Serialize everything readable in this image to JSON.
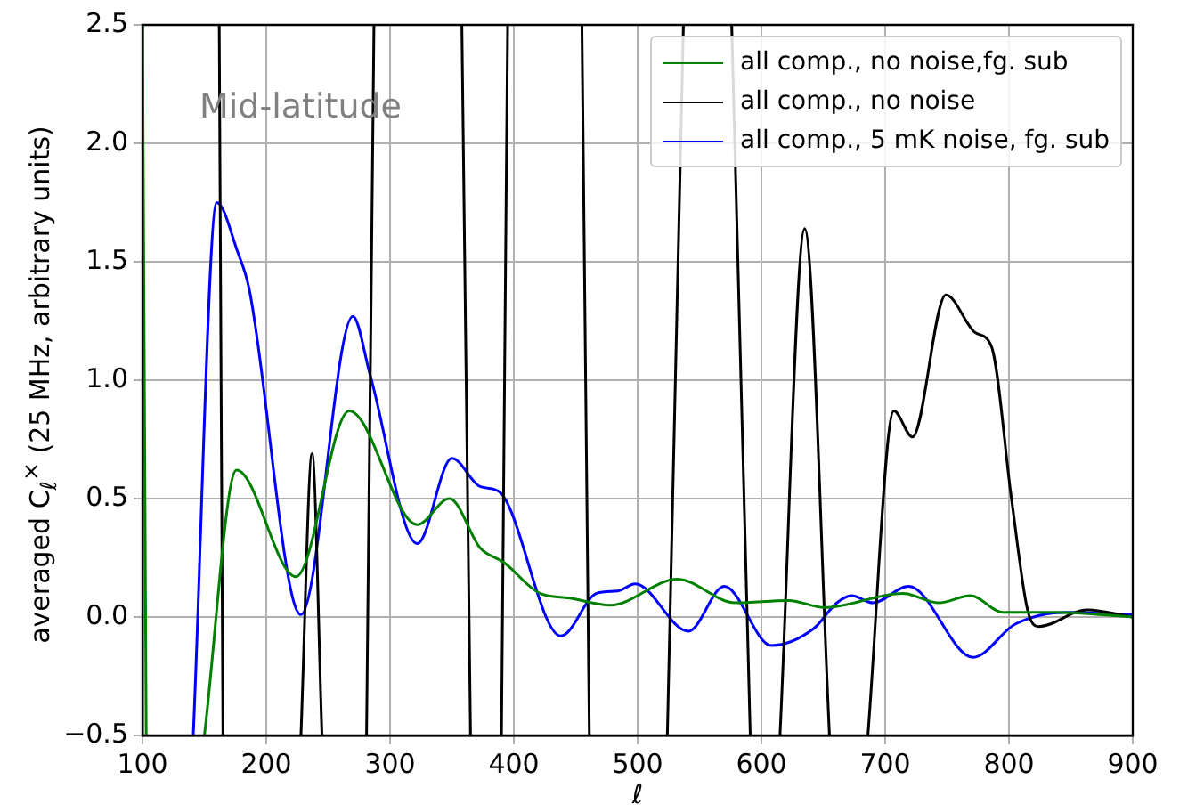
{
  "chart_data": {
    "type": "line",
    "xlabel": "ℓ",
    "ylabel": "averaged C$_{ℓ}$$^{×}$ (25 MHz, arbitrary units)",
    "annotations": [
      "Mid-latitude"
    ],
    "xlim": [
      100,
      900
    ],
    "xticks": [
      100,
      200,
      300,
      400,
      500,
      600,
      700,
      800,
      900
    ],
    "ylim": [
      -0.5,
      2.5
    ],
    "yticks": [
      {
        "value": -0.5,
        "label": "−0.5"
      },
      {
        "value": 0,
        "label": "0.0"
      },
      0.5,
      {
        "value": 1,
        "label": "1.0"
      },
      1.5,
      {
        "value": 2,
        "label": "2.0"
      },
      2.5
    ],
    "grid": true,
    "legend": "top right",
    "series": [
      {
        "name": "all comp., no noise,fg. sub",
        "color": "#008000",
        "x": [
          100,
          103,
          120,
          150,
          176,
          224,
          267,
          322,
          348,
          373,
          392,
          421,
          445,
          478,
          532,
          579,
          622,
          651,
          714,
          743,
          769,
          795,
          838,
          900
        ],
        "values": [
          2.5,
          -0.5,
          null,
          -0.5,
          0.62,
          0.17,
          0.87,
          0.39,
          0.5,
          0.29,
          0.23,
          0.1,
          0.08,
          0.05,
          0.16,
          0.06,
          0.07,
          0.04,
          0.1,
          0.06,
          0.09,
          0.02,
          0.02,
          0.0
        ]
      },
      {
        "name": "all comp., no noise",
        "color": "#000000",
        "x": [
          162,
          165,
          200,
          228,
          237,
          245,
          260,
          281,
          287,
          320,
          358,
          365,
          380,
          390,
          395,
          420,
          455,
          461,
          490,
          524,
          537,
          560,
          576,
          591,
          605,
          615,
          635,
          655,
          670,
          686,
          707,
          722,
          749,
          773,
          786,
          802,
          815,
          824,
          863,
          900
        ],
        "values": [
          2.5,
          -0.5,
          null,
          -0.5,
          0.69,
          -0.5,
          null,
          -0.5,
          2.5,
          null,
          2.5,
          -0.5,
          null,
          -0.5,
          2.5,
          null,
          2.5,
          -0.5,
          null,
          -0.5,
          2.5,
          null,
          2.5,
          -0.5,
          null,
          -0.5,
          1.64,
          -0.5,
          null,
          -0.5,
          0.87,
          0.76,
          1.36,
          1.2,
          1.14,
          0.5,
          0.03,
          -0.04,
          0.03,
          0.0
        ]
      },
      {
        "name": "all comp., 5 mK noise, fg. sub",
        "color": "#0000ff",
        "x": [
          141,
          160,
          177,
          186,
          228,
          270,
          284,
          322,
          350,
          373,
          388,
          438,
          467,
          484,
          498,
          541,
          570,
          608,
          642,
          661,
          673,
          690,
          719,
          771,
          805,
          848,
          900
        ],
        "values": [
          -0.5,
          1.75,
          1.54,
          1.39,
          0.01,
          1.27,
          1.02,
          0.31,
          0.67,
          0.55,
          0.53,
          -0.08,
          0.1,
          0.11,
          0.14,
          -0.06,
          0.13,
          -0.12,
          -0.05,
          0.06,
          0.09,
          0.06,
          0.13,
          -0.17,
          -0.03,
          0.02,
          0.01
        ]
      }
    ]
  }
}
